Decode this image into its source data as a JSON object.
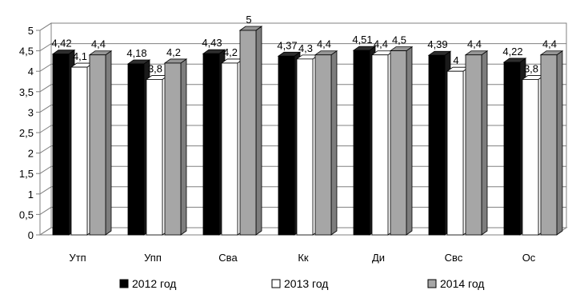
{
  "chart_data": {
    "type": "bar",
    "title": "",
    "xlabel": "",
    "ylabel": "",
    "ylim": [
      0,
      5
    ],
    "y_ticks": [
      "0",
      "0,5",
      "1",
      "1,5",
      "2",
      "2,5",
      "3",
      "3,5",
      "4",
      "4,5",
      "5"
    ],
    "grid": true,
    "legend_position": "bottom",
    "categories": [
      "Утп",
      "Упп",
      "Сва",
      "Кк",
      "Ди",
      "Свс",
      "Ос"
    ],
    "series": [
      {
        "name": "2012 год",
        "color": "#000000",
        "values": [
          4.42,
          4.18,
          4.43,
          4.37,
          4.51,
          4.39,
          4.22
        ],
        "labels": [
          "4,42",
          "4,18",
          "4,43",
          "4,37",
          "4,51",
          "4,39",
          "4,22"
        ]
      },
      {
        "name": "2013 год",
        "color": "#ffffff",
        "values": [
          4.1,
          3.8,
          4.2,
          4.3,
          4.4,
          4.0,
          3.8
        ],
        "labels": [
          "4,1",
          "3,8",
          "4,2",
          "4,3",
          "4,4",
          "4",
          "3,8"
        ]
      },
      {
        "name": "2014 год",
        "color": "#a6a6a6",
        "values": [
          4.4,
          4.2,
          5.0,
          4.4,
          4.5,
          4.4,
          4.4
        ],
        "labels": [
          "4,4",
          "4,2",
          "5",
          "4,4",
          "4,5",
          "4,4",
          "4,4"
        ]
      }
    ]
  }
}
